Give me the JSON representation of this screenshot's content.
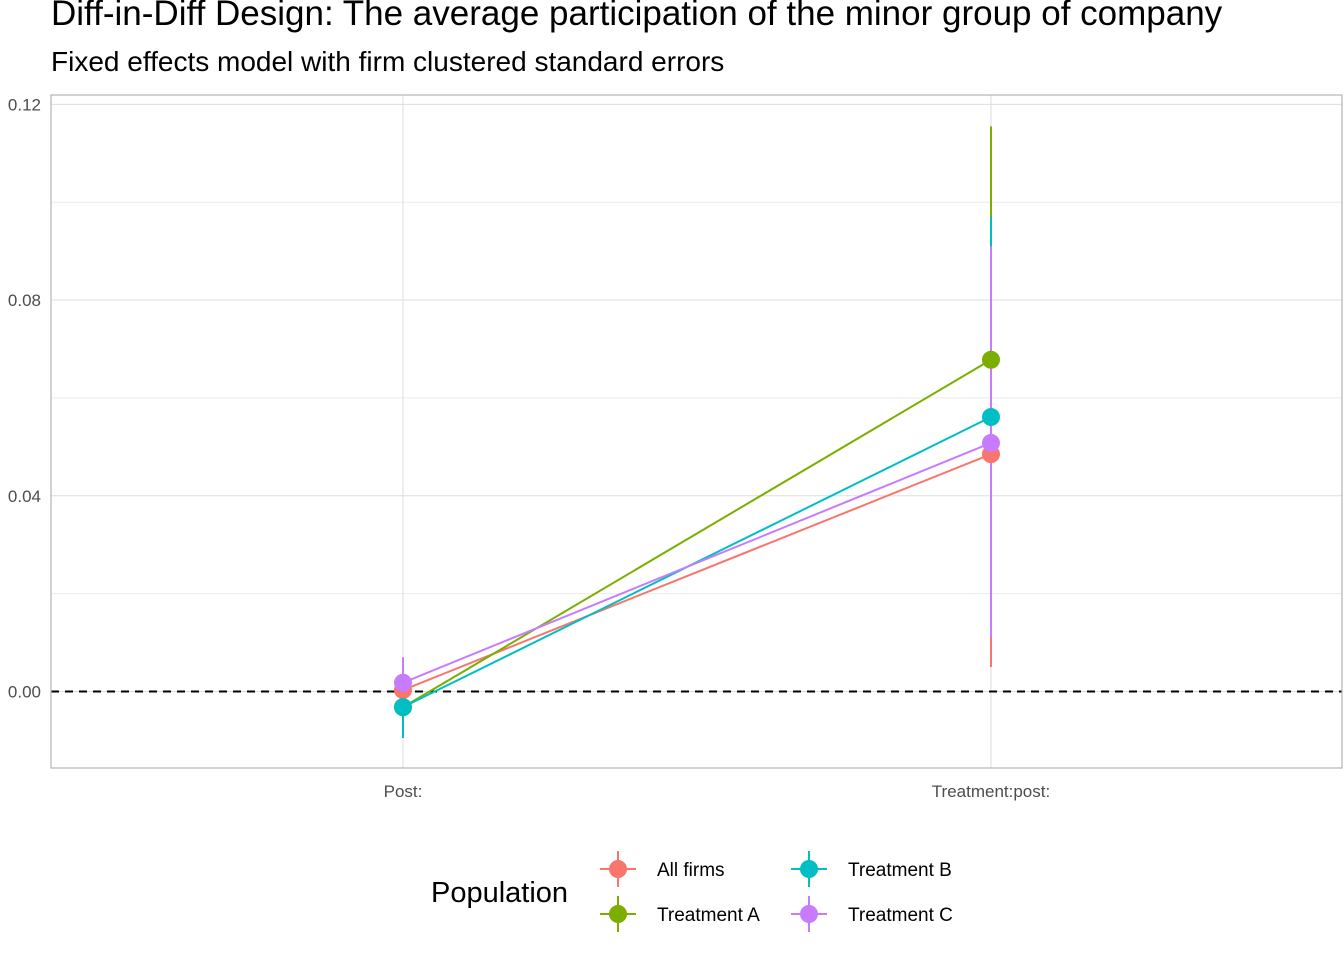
{
  "chart_data": {
    "type": "line",
    "title": "Diff-in-Diff Design: The average participation of the minor group of company",
    "subtitle": "Fixed effects model with firm clustered standard errors",
    "categories": [
      "Post:",
      "Treatment:post:"
    ],
    "y_ticks": [
      "0.00",
      "0.04",
      "0.08",
      "0.12"
    ],
    "ylim": [
      -0.016,
      0.121
    ],
    "grid": true,
    "reference_line": {
      "y": 0.0,
      "style": "dashed",
      "color": "#000000"
    },
    "legend": {
      "title": "Population",
      "position": "bottom"
    },
    "series": [
      {
        "name": "All firms",
        "color": "#F8766D",
        "values": [
          0.0003,
          0.0485
        ],
        "lower": [
          -0.0015,
          0.005
        ],
        "upper": [
          0.002,
          0.092
        ]
      },
      {
        "name": "Treatment A",
        "color": "#7CAE00",
        "values": [
          -0.0032,
          0.0678
        ],
        "lower": [
          -0.006,
          0.02
        ],
        "upper": [
          0.0,
          0.1155
        ]
      },
      {
        "name": "Treatment B",
        "color": "#00BFC4",
        "values": [
          -0.0032,
          0.0561
        ],
        "lower": [
          -0.0095,
          0.015
        ],
        "upper": [
          0.003,
          0.097
        ]
      },
      {
        "name": "Treatment C",
        "color": "#C77CFF",
        "values": [
          0.0018,
          0.0508
        ],
        "lower": [
          -0.003,
          0.011
        ],
        "upper": [
          0.007,
          0.091
        ]
      }
    ]
  }
}
